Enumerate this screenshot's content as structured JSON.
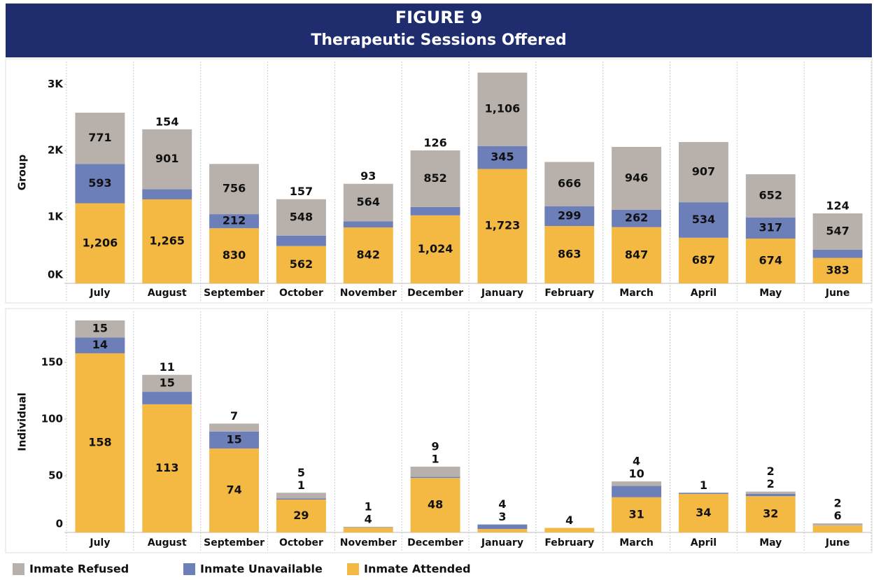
{
  "header": {
    "title": "FIGURE 9",
    "subtitle": "Therapeutic Sessions Offered"
  },
  "chart_data": [
    {
      "type": "stacked_bar",
      "ylabel": "Group",
      "categories": [
        "July",
        "August",
        "September",
        "October",
        "November",
        "December",
        "January",
        "February",
        "March",
        "April",
        "May",
        "June"
      ],
      "series": [
        {
          "name": "Inmate Attended",
          "color": "#f4b942",
          "values": [
            1206,
            1265,
            830,
            562,
            842,
            1024,
            1723,
            863,
            847,
            687,
            674,
            383
          ],
          "value_labels": [
            "1,206",
            "1,265",
            "830",
            "562",
            "842",
            "1,024",
            "1,723",
            "863",
            "847",
            "687",
            "674",
            "383"
          ]
        },
        {
          "name": "Inmate Unavailable",
          "color": "#6d7fb8",
          "values": [
            593,
            154,
            212,
            157,
            93,
            126,
            345,
            299,
            262,
            534,
            317,
            124
          ]
        },
        {
          "name": "Inmate Refused",
          "color": "#b8b0ab",
          "values": [
            771,
            901,
            756,
            548,
            564,
            852,
            1106,
            666,
            946,
            907,
            652,
            547
          ],
          "value_labels": [
            "771",
            "901",
            "756",
            "548",
            "564",
            "852",
            "1,106",
            "666",
            "946",
            "907",
            "652",
            "547"
          ]
        }
      ],
      "ylim": [
        0,
        3340
      ],
      "yticks": [
        {
          "value": 0,
          "label": "0K"
        },
        {
          "value": 1000,
          "label": "1K"
        },
        {
          "value": 2000,
          "label": "2K"
        },
        {
          "value": 3000,
          "label": "3K"
        }
      ]
    },
    {
      "type": "stacked_bar",
      "ylabel": "Individual",
      "categories": [
        "July",
        "August",
        "September",
        "October",
        "November",
        "December",
        "January",
        "February",
        "March",
        "April",
        "May",
        "June"
      ],
      "series": [
        {
          "color": "#f4b942",
          "values": [
            158,
            113,
            74,
            29,
            4,
            48,
            3,
            4,
            31,
            34,
            32,
            6
          ]
        },
        {
          "color": "#6d7fb8",
          "values": [
            14,
            11,
            15,
            1,
            null,
            1,
            4,
            null,
            10,
            1,
            2,
            null
          ]
        },
        {
          "color": "#b8b0ab",
          "values": [
            15,
            15,
            7,
            5,
            1,
            9,
            null,
            null,
            4,
            null,
            2,
            2
          ]
        }
      ],
      "ylim": [
        0,
        195
      ],
      "yticks": [
        0,
        50,
        100,
        150
      ]
    }
  ]
}
